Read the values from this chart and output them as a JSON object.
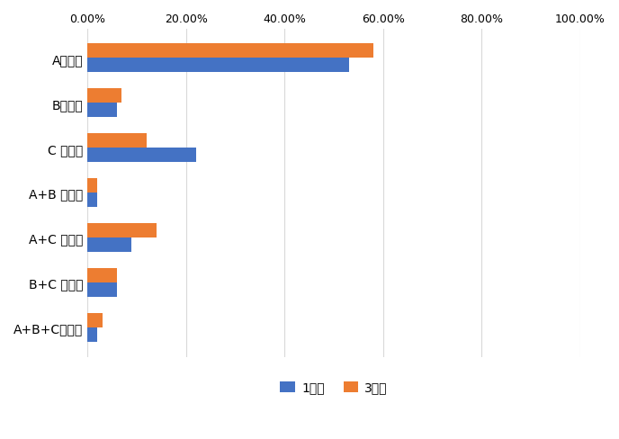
{
  "labels": [
    "Aタイプ",
    "Bタイプ",
    "C タイプ",
    "A+B タイプ",
    "A+C タイプ",
    "B+C タイプ",
    "A+B+Cタイプ"
  ],
  "week1": [
    0.53,
    0.06,
    0.22,
    0.02,
    0.09,
    0.06,
    0.02
  ],
  "week3": [
    0.58,
    0.07,
    0.12,
    0.02,
    0.14,
    0.06,
    0.03
  ],
  "color_week1": "#4472C4",
  "color_week3": "#ED7D31",
  "legend_week1": "1週目",
  "legend_week3": "3週目",
  "xlim": [
    0.0,
    1.0
  ],
  "xticks": [
    0.0,
    0.2,
    0.4,
    0.6,
    0.8,
    1.0
  ],
  "xtick_labels": [
    "0.00%",
    "20.00%",
    "40.00%",
    "60.00%",
    "80.00%",
    "100.00%"
  ],
  "background_color": "#FFFFFF",
  "grid_color": "#D9D9D9",
  "bar_height": 0.32,
  "figsize": [
    6.88,
    4.89
  ],
  "dpi": 100
}
